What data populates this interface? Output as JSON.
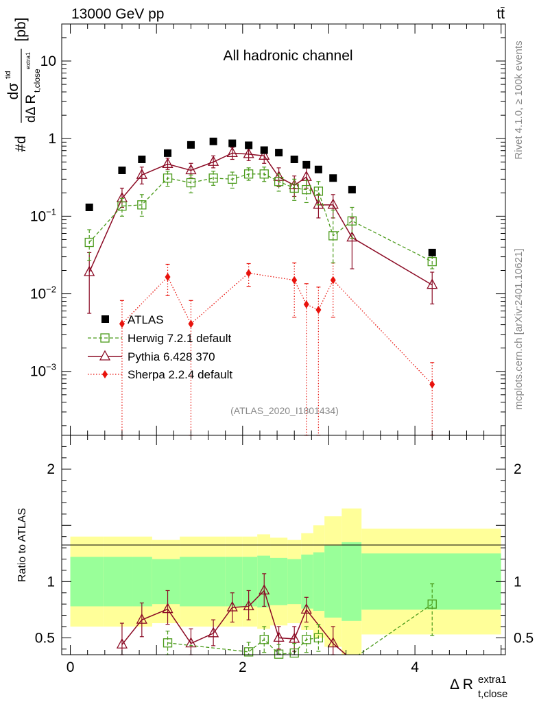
{
  "header": {
    "energy_label": "13000 GeV pp",
    "process_label": "tt̄",
    "channel_label": "All hadronic channel",
    "rivet_label": "Rivet 4.1.0, ≥ 100k events",
    "mcplots_label": "mcplots.cern.ch [arXiv:2401.10621]",
    "analysis_label": "(ATLAS_2020_I1801434)"
  },
  "colors": {
    "atlas": "#000000",
    "herwig": "#4a9a1a",
    "pythia": "#8b0a24",
    "sherpa": "#e8120c",
    "band_inner": "#99ff99",
    "band_outer": "#ffff99"
  },
  "chart_data": [
    {
      "type": "scatter",
      "panel": "main",
      "yscale": "log",
      "ylim": [
        0.00015,
        30
      ],
      "xlim": [
        -0.1,
        5.05
      ],
      "ylabel_parts": {
        "main": "#d",
        "sigma": "dσ",
        "sup": "tid",
        "den": "dΔ R",
        "sub": "t,close",
        "subsup": "extra1",
        "unit": "[pb]"
      },
      "y_ticks": [
        {
          "v": 10,
          "label": "10"
        },
        {
          "v": 1,
          "label": "1"
        },
        {
          "v": 0.1,
          "label": "10",
          "exp": "−1"
        },
        {
          "v": 0.01,
          "label": "10",
          "exp": "−2"
        },
        {
          "v": 0.001,
          "label": "10",
          "exp": "−3"
        }
      ],
      "legend": [
        {
          "series": "atlas",
          "label": "ATLAS"
        },
        {
          "series": "herwig",
          "label": "Herwig 7.2.1 default"
        },
        {
          "series": "pythia",
          "label": "Pythia 6.428 370"
        },
        {
          "series": "sherpa",
          "label": "Sherpa 2.2.4 default"
        }
      ],
      "series": [
        {
          "name": "atlas",
          "x": [
            0.22,
            0.6,
            0.83,
            1.13,
            1.4,
            1.66,
            1.88,
            2.07,
            2.25,
            2.42,
            2.6,
            2.74,
            2.88,
            3.05,
            3.27,
            4.2
          ],
          "y": [
            0.13,
            0.39,
            0.54,
            0.65,
            0.83,
            0.92,
            0.87,
            0.82,
            0.71,
            0.66,
            0.54,
            0.46,
            0.4,
            0.31,
            0.22,
            0.034
          ]
        },
        {
          "name": "herwig",
          "x": [
            0.22,
            0.6,
            0.83,
            1.13,
            1.4,
            1.66,
            1.88,
            2.07,
            2.25,
            2.42,
            2.6,
            2.74,
            2.88,
            3.05,
            3.27,
            4.2
          ],
          "y": [
            0.046,
            0.135,
            0.14,
            0.31,
            0.27,
            0.31,
            0.3,
            0.35,
            0.35,
            0.28,
            0.23,
            0.22,
            0.21,
            0.056,
            0.087,
            0.026
          ],
          "yerr_up": [
            0.067,
            0.17,
            0.19,
            0.38,
            0.34,
            0.38,
            0.37,
            0.42,
            0.43,
            0.35,
            0.3,
            0.29,
            0.28,
            0.12,
            0.13,
            0.031
          ],
          "yerr_dn": [
            0.027,
            0.1,
            0.1,
            0.24,
            0.2,
            0.25,
            0.23,
            0.29,
            0.28,
            0.21,
            0.16,
            0.15,
            0.14,
            0.025,
            0.052,
            0.021
          ]
        },
        {
          "name": "pythia",
          "x": [
            0.22,
            0.6,
            0.83,
            1.13,
            1.4,
            1.66,
            1.88,
            2.07,
            2.25,
            2.42,
            2.6,
            2.74,
            2.88,
            3.05,
            3.27,
            4.2
          ],
          "y": [
            0.019,
            0.17,
            0.34,
            0.47,
            0.39,
            0.5,
            0.65,
            0.63,
            0.6,
            0.32,
            0.25,
            0.32,
            0.14,
            0.14,
            0.053,
            0.013
          ],
          "yerr_up": [
            0.034,
            0.23,
            0.43,
            0.56,
            0.48,
            0.6,
            0.77,
            0.75,
            0.73,
            0.42,
            0.33,
            0.44,
            0.19,
            0.19,
            0.095,
            0.019
          ],
          "yerr_dn": [
            0.0056,
            0.13,
            0.26,
            0.4,
            0.31,
            0.42,
            0.54,
            0.52,
            0.48,
            0.24,
            0.18,
            0.23,
            0.095,
            0.095,
            0.021,
            0.0074
          ]
        },
        {
          "name": "sherpa",
          "x": [
            0.6,
            1.13,
            1.4,
            2.07,
            2.6,
            2.74,
            2.88,
            3.05,
            4.2
          ],
          "y": [
            0.0041,
            0.0165,
            0.0041,
            0.0185,
            0.015,
            0.0073,
            0.0062,
            0.015,
            0.00068
          ],
          "yerr_up": [
            0.0082,
            0.024,
            0.0082,
            0.0245,
            0.025,
            0.0135,
            0.0122,
            0.025,
            0.0013
          ],
          "yerr_dn": [
            0.0001,
            0.0095,
            0.0001,
            0.0125,
            0.005,
            0.0001,
            0.0001,
            0.005,
            0.0001
          ]
        }
      ]
    },
    {
      "type": "scatter",
      "panel": "ratio",
      "ylabel": "Ratio to ATLAS",
      "ylim": [
        0.35,
        2.3
      ],
      "xlim": [
        -0.1,
        5.05
      ],
      "xlabel_parts": {
        "main": "Δ R",
        "sup": "extra1",
        "sub": "t,close"
      },
      "y_ticks": [
        {
          "v": 2,
          "label": "2"
        },
        {
          "v": 1,
          "label": "1"
        },
        {
          "v": 0.5,
          "label": "0.5"
        }
      ],
      "x_ticks": [
        {
          "v": 0,
          "label": "0"
        },
        {
          "v": 2,
          "label": "2"
        },
        {
          "v": 4,
          "label": "4"
        }
      ],
      "band_edges": [
        0.0,
        0.38,
        0.72,
        0.95,
        1.27,
        1.5,
        1.8,
        2.0,
        2.17,
        2.32,
        2.52,
        2.68,
        2.82,
        2.95,
        3.15,
        3.38,
        5.0
      ],
      "band_inner_up": [
        1.22,
        1.22,
        1.22,
        1.2,
        1.22,
        1.22,
        1.22,
        1.22,
        1.23,
        1.21,
        1.2,
        1.24,
        1.26,
        1.32,
        1.35,
        1.25
      ],
      "band_inner_dn": [
        0.78,
        0.78,
        0.78,
        0.8,
        0.78,
        0.78,
        0.78,
        0.78,
        0.77,
        0.79,
        0.8,
        0.76,
        0.74,
        0.68,
        0.65,
        0.75
      ],
      "band_outer_up": [
        1.4,
        1.4,
        1.4,
        1.37,
        1.4,
        1.4,
        1.4,
        1.4,
        1.42,
        1.39,
        1.37,
        1.43,
        1.5,
        1.58,
        1.65,
        1.47
      ],
      "band_outer_dn": [
        0.6,
        0.6,
        0.6,
        0.63,
        0.6,
        0.6,
        0.6,
        0.6,
        0.58,
        0.61,
        0.63,
        0.57,
        0.5,
        0.42,
        0.35,
        0.53
      ],
      "series": [
        {
          "name": "herwig",
          "x": [
            1.13,
            2.07,
            2.25,
            2.42,
            2.6,
            2.74,
            2.88,
            4.2
          ],
          "y": [
            0.455,
            0.375,
            0.485,
            0.355,
            0.365,
            0.485,
            0.5,
            0.8
          ],
          "yerr_up": [
            0.56,
            0.46,
            0.6,
            0.44,
            0.45,
            0.6,
            0.62,
            0.98
          ],
          "yerr_dn": [
            0.35,
            0.3,
            0.37,
            0.27,
            0.28,
            0.37,
            0.38,
            0.52
          ],
          "extend_to_edge": {
            "from_x": 4.2,
            "to_x": 3.35
          }
        },
        {
          "name": "pythia",
          "x": [
            0.6,
            0.83,
            1.13,
            1.4,
            1.66,
            1.88,
            2.07,
            2.25,
            2.42,
            2.6,
            2.74,
            3.05
          ],
          "y": [
            0.44,
            0.66,
            0.755,
            0.45,
            0.54,
            0.77,
            0.78,
            0.92,
            0.5,
            0.49,
            0.75,
            0.45
          ],
          "yerr_up": [
            0.63,
            0.81,
            0.92,
            0.58,
            0.66,
            0.9,
            0.92,
            1.07,
            0.6,
            0.6,
            0.86,
            0.6
          ],
          "yerr_dn": [
            0.3,
            0.51,
            0.62,
            0.34,
            0.43,
            0.64,
            0.66,
            0.78,
            0.4,
            0.38,
            0.64,
            0.3
          ],
          "extend_to_edge": {
            "from_x": 3.05,
            "to_x": 3.2
          }
        }
      ]
    }
  ]
}
